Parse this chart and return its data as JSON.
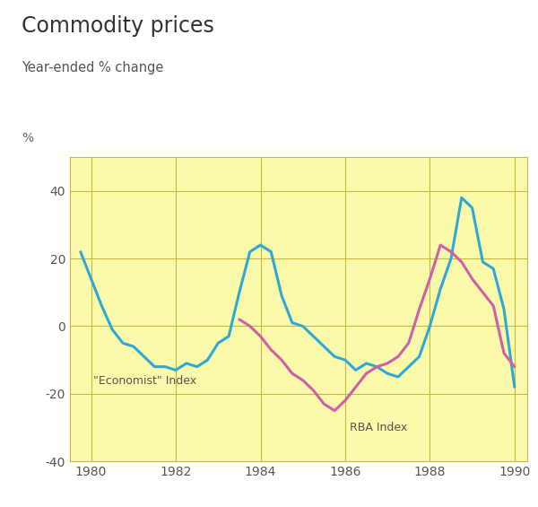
{
  "title": "Commodity prices",
  "subtitle": "Year-ended % change",
  "ylabel": "%",
  "xlim": [
    1979.5,
    1990.3
  ],
  "ylim": [
    -40,
    50
  ],
  "yticks": [
    -40,
    -20,
    0,
    20,
    40
  ],
  "xticks": [
    1980,
    1982,
    1984,
    1986,
    1988,
    1990
  ],
  "background_color": "#FAFAAA",
  "grid_color": "#C8B840",
  "economist_color": "#2EA8D5",
  "rba_color": "#D060A8",
  "economist_label": "\"Economist\" Index",
  "rba_label": "RBA Index",
  "economist_x": [
    1979.75,
    1980.0,
    1980.25,
    1980.5,
    1980.75,
    1981.0,
    1981.25,
    1981.5,
    1981.75,
    1982.0,
    1982.25,
    1982.5,
    1982.75,
    1983.0,
    1983.25,
    1983.5,
    1983.75,
    1984.0,
    1984.25,
    1984.5,
    1984.75,
    1985.0,
    1985.25,
    1985.5,
    1985.75,
    1986.0,
    1986.25,
    1986.5,
    1986.75,
    1987.0,
    1987.25,
    1987.5,
    1987.75,
    1988.0,
    1988.25,
    1988.5,
    1988.75,
    1989.0,
    1989.25,
    1989.5,
    1989.75,
    1990.0
  ],
  "economist_y": [
    22,
    14,
    6,
    -1,
    -5,
    -6,
    -9,
    -12,
    -12,
    -13,
    -11,
    -12,
    -10,
    -5,
    -3,
    10,
    22,
    24,
    22,
    9,
    1,
    0,
    -3,
    -6,
    -9,
    -10,
    -13,
    -11,
    -12,
    -14,
    -15,
    -12,
    -9,
    0,
    11,
    20,
    38,
    35,
    19,
    17,
    5,
    -18
  ],
  "rba_x": [
    1983.5,
    1983.75,
    1984.0,
    1984.25,
    1984.5,
    1984.75,
    1985.0,
    1985.25,
    1985.5,
    1985.75,
    1986.0,
    1986.25,
    1986.5,
    1986.75,
    1987.0,
    1987.25,
    1987.5,
    1987.75,
    1988.0,
    1988.25,
    1988.5,
    1988.75,
    1989.0,
    1989.25,
    1989.5,
    1989.75,
    1990.0
  ],
  "rba_y": [
    2,
    0,
    -3,
    -7,
    -10,
    -14,
    -16,
    -19,
    -23,
    -25,
    -22,
    -18,
    -14,
    -12,
    -11,
    -9,
    -5,
    5,
    14,
    24,
    22,
    19,
    14,
    10,
    6,
    -8,
    -12
  ]
}
